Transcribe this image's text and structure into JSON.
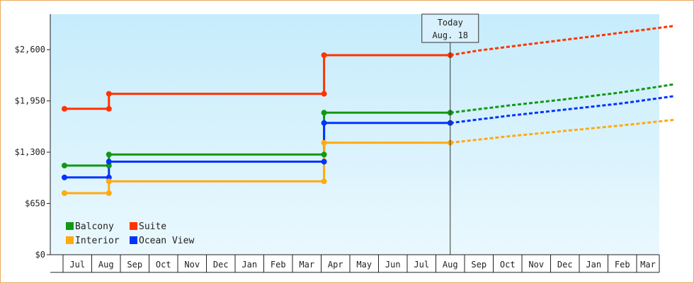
{
  "chart_data": {
    "type": "line",
    "line_style": "step",
    "xlabel": "",
    "ylabel": "",
    "ylim": [
      0,
      3050
    ],
    "y_ticks": [
      {
        "value": 0,
        "label": "$0"
      },
      {
        "value": 650,
        "label": "$650"
      },
      {
        "value": 1300,
        "label": "$1,300"
      },
      {
        "value": 1950,
        "label": "$1,950"
      },
      {
        "value": 2600,
        "label": "$2,600"
      }
    ],
    "months": [
      "Jul",
      "Aug",
      "Sep",
      "Oct",
      "Nov",
      "Dec",
      "Jan",
      "Feb",
      "Mar",
      "Apr",
      "May",
      "Jun",
      "Jul",
      "Aug",
      "Sep",
      "Oct",
      "Nov",
      "Dec",
      "Jan",
      "Feb",
      "Mar"
    ],
    "x_range_months": [
      -0.45,
      20.8
    ],
    "today": {
      "line1": "Today",
      "line2": "Aug. 18",
      "x": 13.0
    },
    "grid": false,
    "background": "sky gradient",
    "legend_position": "bottom-left",
    "series": [
      {
        "name": "Suite",
        "color": "#ff3300",
        "actual": [
          [
            -0.45,
            1850
          ],
          [
            1.1,
            1850
          ],
          [
            1.1,
            2040
          ],
          [
            8.6,
            2040
          ],
          [
            8.6,
            2530
          ],
          [
            13.0,
            2530
          ]
        ],
        "forecast": [
          [
            13.0,
            2530
          ],
          [
            14.0,
            2590
          ],
          [
            16.0,
            2680
          ],
          [
            18.0,
            2770
          ],
          [
            20.8,
            2900
          ]
        ]
      },
      {
        "name": "Balcony",
        "color": "#119911",
        "actual": [
          [
            -0.45,
            1130
          ],
          [
            1.1,
            1130
          ],
          [
            1.1,
            1270
          ],
          [
            8.6,
            1270
          ],
          [
            8.6,
            1800
          ],
          [
            13.0,
            1800
          ]
        ],
        "forecast": [
          [
            13.0,
            1800
          ],
          [
            15.0,
            1890
          ],
          [
            17.0,
            1970
          ],
          [
            19.0,
            2060
          ],
          [
            20.8,
            2160
          ]
        ]
      },
      {
        "name": "Ocean View",
        "color": "#0033ff",
        "actual": [
          [
            -0.45,
            980
          ],
          [
            1.1,
            980
          ],
          [
            1.1,
            1180
          ],
          [
            8.6,
            1180
          ],
          [
            8.6,
            1670
          ],
          [
            13.0,
            1670
          ]
        ],
        "forecast": [
          [
            13.0,
            1670
          ],
          [
            15.0,
            1760
          ],
          [
            17.0,
            1840
          ],
          [
            19.0,
            1920
          ],
          [
            20.8,
            2010
          ]
        ]
      },
      {
        "name": "Interior",
        "color": "#ffaa11",
        "actual": [
          [
            -0.45,
            780
          ],
          [
            1.1,
            780
          ],
          [
            1.1,
            930
          ],
          [
            8.6,
            930
          ],
          [
            8.6,
            1420
          ],
          [
            13.0,
            1420
          ]
        ],
        "forecast": [
          [
            13.0,
            1420
          ],
          [
            15.0,
            1500
          ],
          [
            17.0,
            1570
          ],
          [
            19.0,
            1640
          ],
          [
            20.8,
            1710
          ]
        ]
      }
    ],
    "markers": [
      {
        "series": "Suite",
        "points": [
          [
            -0.45,
            1850
          ],
          [
            1.1,
            1850
          ],
          [
            1.1,
            2040
          ],
          [
            8.6,
            2040
          ],
          [
            8.6,
            2530
          ],
          [
            13.0,
            2530
          ]
        ]
      },
      {
        "series": "Balcony",
        "points": [
          [
            -0.45,
            1130
          ],
          [
            1.1,
            1130
          ],
          [
            1.1,
            1270
          ],
          [
            8.6,
            1270
          ],
          [
            8.6,
            1800
          ],
          [
            13.0,
            1800
          ]
        ]
      },
      {
        "series": "Ocean View",
        "points": [
          [
            -0.45,
            980
          ],
          [
            1.1,
            980
          ],
          [
            1.1,
            1180
          ],
          [
            8.6,
            1180
          ],
          [
            8.6,
            1670
          ],
          [
            13.0,
            1670
          ]
        ]
      },
      {
        "series": "Interior",
        "points": [
          [
            -0.45,
            780
          ],
          [
            1.1,
            780
          ],
          [
            1.1,
            930
          ],
          [
            8.6,
            930
          ],
          [
            8.6,
            1420
          ],
          [
            13.0,
            1420
          ]
        ]
      }
    ]
  },
  "legend": {
    "items": [
      {
        "label": "Balcony",
        "color": "#119911"
      },
      {
        "label": "Suite",
        "color": "#ff3300"
      },
      {
        "label": "Interior",
        "color": "#ffaa11"
      },
      {
        "label": "Ocean View",
        "color": "#0033ff"
      }
    ]
  }
}
